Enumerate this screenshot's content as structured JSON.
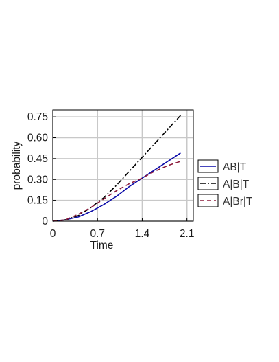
{
  "chart_data": {
    "type": "line",
    "title": "",
    "xlabel": "Time",
    "ylabel": "probability",
    "xlim": [
      0,
      2.2
    ],
    "ylim": [
      0,
      0.8
    ],
    "xticks": [
      0,
      0.7,
      1.4,
      2.1
    ],
    "xtick_labels": [
      "0",
      "0.7",
      "1.4",
      "2.1"
    ],
    "yticks": [
      0,
      0.15,
      0.3,
      0.45,
      0.6,
      0.75
    ],
    "ytick_labels": [
      "0",
      "0.15",
      "0.30",
      "0.45",
      "0.60",
      "0.75"
    ],
    "grid": true,
    "legend_position": "outside-right",
    "x": [
      0,
      0.2,
      0.4,
      0.6,
      0.8,
      1.0,
      1.2,
      1.4,
      1.6,
      1.8,
      2.0
    ],
    "series": [
      {
        "name": "AB|T",
        "color": "#0a0aa8",
        "dash": "solid",
        "values": [
          0,
          0.01,
          0.03,
          0.07,
          0.12,
          0.18,
          0.25,
          0.31,
          0.37,
          0.43,
          0.49
        ]
      },
      {
        "name": "A|B|T",
        "color": "#000000",
        "dash": "dashdot",
        "values": [
          0,
          0.01,
          0.04,
          0.1,
          0.17,
          0.26,
          0.36,
          0.46,
          0.56,
          0.66,
          0.76
        ]
      },
      {
        "name": "A|Br|T",
        "color": "#8b1a3a",
        "dash": "dashed",
        "values": [
          0,
          0.01,
          0.05,
          0.1,
          0.16,
          0.22,
          0.27,
          0.31,
          0.36,
          0.4,
          0.43
        ]
      }
    ]
  }
}
